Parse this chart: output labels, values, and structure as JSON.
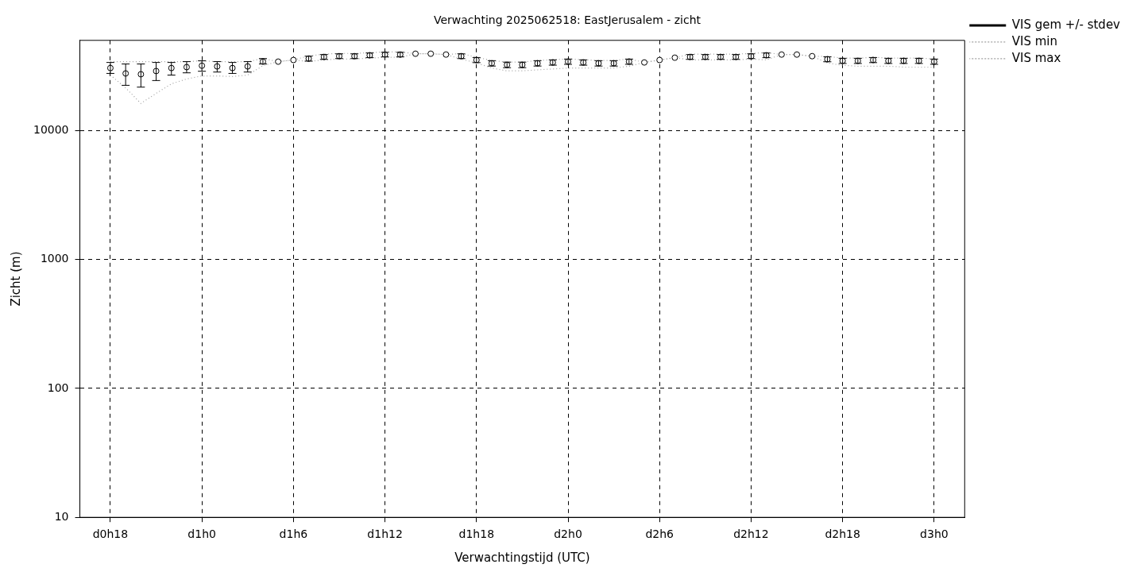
{
  "chart_data": {
    "type": "line",
    "title": "Verwachting 2025062518: EastJerusalem - zicht",
    "xlabel": "Verwachtingstijd (UTC)",
    "ylabel": "Zicht (m)",
    "log": "y",
    "grid": true,
    "legend": "top right",
    "categories": [
      "d0h18",
      null,
      null,
      null,
      null,
      null,
      "d1h0",
      null,
      null,
      null,
      null,
      null,
      "d1h6",
      null,
      null,
      null,
      null,
      null,
      "d1h12",
      null,
      null,
      null,
      null,
      null,
      "d1h18",
      null,
      null,
      null,
      null,
      null,
      "d2h0",
      null,
      null,
      null,
      null,
      null,
      "d2h6",
      null,
      null,
      null,
      null,
      null,
      "d2h12",
      null,
      null,
      null,
      null,
      null,
      "d2h18",
      null,
      null,
      null,
      null,
      null,
      "d3h0"
    ],
    "ylim": [
      10,
      50000
    ],
    "yticks": [
      10,
      100,
      1000,
      10000
    ],
    "series": [
      {
        "name": "VIS gem +/- stdev",
        "type": "scatter",
        "marker": "circle",
        "color": "#000000",
        "values": [
          30500,
          27700,
          27300,
          28900,
          30500,
          31000,
          31800,
          31400,
          30500,
          31400,
          34200,
          34200,
          35200,
          36100,
          37200,
          37700,
          37700,
          38300,
          38800,
          38800,
          39400,
          39400,
          38800,
          37700,
          35200,
          33200,
          32300,
          32300,
          33200,
          33700,
          34200,
          33700,
          33200,
          33200,
          34200,
          33700,
          35200,
          36700,
          37200,
          37200,
          37200,
          37200,
          37700,
          38300,
          38800,
          38800,
          37700,
          35700,
          34700,
          34700,
          35200,
          34700,
          34700,
          34700,
          34200
        ],
        "errors": [
          [
            27700,
            33700
          ],
          [
            22400,
            32800
          ],
          [
            21700,
            32800
          ],
          [
            24400,
            33700
          ],
          [
            26900,
            33700
          ],
          [
            28000,
            34200
          ],
          [
            28800,
            34700
          ],
          [
            28400,
            34200
          ],
          [
            27700,
            33700
          ],
          [
            28400,
            34200
          ],
          [
            32800,
            36100
          ],
          null,
          null,
          1600,
          1600,
          1600,
          1600,
          1600,
          1600,
          1600,
          null,
          null,
          null,
          1600,
          1600,
          1600,
          1600,
          1600,
          1600,
          1600,
          1600,
          1600,
          1600,
          1600,
          1600,
          null,
          null,
          null,
          1600,
          1600,
          1600,
          1600,
          1600,
          1600,
          null,
          null,
          null,
          1600,
          1600,
          1600,
          1600,
          1600,
          1600,
          1600,
          1600
        ]
      },
      {
        "name": "VIS min",
        "type": "line",
        "marker": "none",
        "line_style": "dotted",
        "color": "#a0a0a0",
        "values": [
          26900,
          21400,
          16200,
          19400,
          23000,
          25100,
          26500,
          26500,
          26200,
          26900,
          31800,
          34200,
          35200,
          34300,
          35300,
          35800,
          35800,
          36400,
          36900,
          36900,
          39400,
          39400,
          38800,
          35800,
          33400,
          30500,
          29000,
          29000,
          29500,
          30000,
          30500,
          30500,
          30500,
          30500,
          31500,
          33700,
          35200,
          36700,
          35300,
          35300,
          35300,
          35300,
          35800,
          35300,
          38800,
          38800,
          37700,
          33400,
          32000,
          31500,
          31500,
          31500,
          31000,
          31000,
          31000
        ]
      },
      {
        "name": "VIS max",
        "type": "line",
        "marker": "none",
        "line_style": "dotted",
        "color": "#a0a0a0",
        "values": [
          34200,
          34200,
          34200,
          34200,
          34200,
          34200,
          34700,
          34200,
          34200,
          34200,
          36100,
          34200,
          35200,
          37900,
          39100,
          39600,
          39600,
          40200,
          40700,
          40700,
          39400,
          39400,
          38800,
          39600,
          37000,
          34900,
          33900,
          33900,
          34900,
          35400,
          35900,
          35400,
          34900,
          34900,
          35900,
          33700,
          35200,
          36700,
          39100,
          39100,
          39100,
          39100,
          39600,
          40200,
          38800,
          38800,
          37700,
          37500,
          36400,
          36400,
          37000,
          36400,
          36400,
          36400,
          35900
        ]
      }
    ]
  }
}
